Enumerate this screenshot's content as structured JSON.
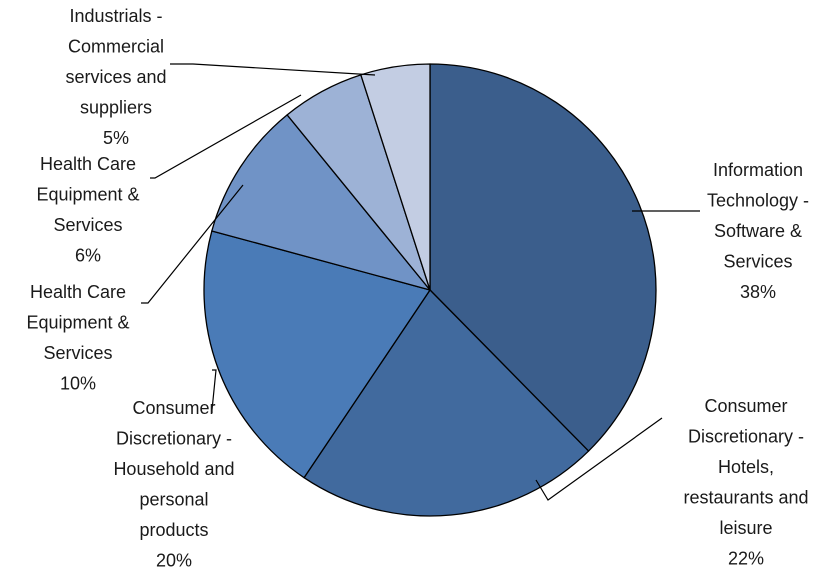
{
  "chart_data": {
    "type": "pie",
    "title": "",
    "start_angle_deg": 0,
    "direction": "clockwise",
    "legend": "none",
    "slices": [
      {
        "name": "Information Technology - Software & Services",
        "label_lines": [
          "Information",
          "Technology -",
          "Software &",
          "Services"
        ],
        "value": 38,
        "value_label": "38%",
        "color": "#3B5E8C"
      },
      {
        "name": "Consumer Discretionary - Hotels, restaurants and leisure",
        "label_lines": [
          "Consumer",
          "Discretionary -",
          "Hotels,",
          "restaurants and",
          "leisure"
        ],
        "value": 22,
        "value_label": "22%",
        "color": "#416A9E"
      },
      {
        "name": "Consumer Discretionary - Household and personal products",
        "label_lines": [
          "Consumer",
          "Discretionary -",
          "Household and",
          "personal",
          "products"
        ],
        "value": 20,
        "value_label": "20%",
        "color": "#4A7BB7"
      },
      {
        "name": "Health Care Equipment & Services",
        "label_lines": [
          "Health Care",
          "Equipment &",
          "Services"
        ],
        "value": 10,
        "value_label": "10%",
        "color": "#7093C6"
      },
      {
        "name": "Health Care Equipment & Services",
        "label_lines": [
          "Health Care",
          "Equipment &",
          "Services"
        ],
        "value": 6,
        "value_label": "6%",
        "color": "#9DB2D6"
      },
      {
        "name": "Industrials - Commercial services and suppliers",
        "label_lines": [
          "Industrials -",
          "Commercial",
          "services and",
          "suppliers"
        ],
        "value": 5,
        "value_label": "5%",
        "color": "#C3CDE3"
      }
    ]
  }
}
